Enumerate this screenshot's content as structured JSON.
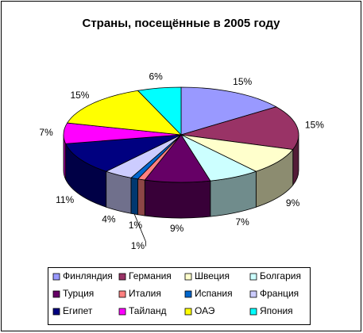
{
  "chart_data": {
    "type": "pie",
    "title": "Страны, посещённые в 2005 году",
    "categories": [
      "Финляндия",
      "Германия",
      "Швеция",
      "Болгария",
      "Турция",
      "Италия",
      "Испания",
      "Франция",
      "Египет",
      "Тайланд",
      "ОАЭ",
      "Япония"
    ],
    "values": [
      15,
      15,
      9,
      7,
      9,
      1,
      1,
      4,
      11,
      7,
      15,
      6
    ],
    "value_labels": [
      "15%",
      "15%",
      "9%",
      "7%",
      "9%",
      "1%",
      "1%",
      "4%",
      "11%",
      "7%",
      "15%",
      "6%"
    ],
    "colors": [
      "#9999ff",
      "#993366",
      "#ffffcc",
      "#ccffff",
      "#660066",
      "#ff8080",
      "#0066cc",
      "#ccccff",
      "#000080",
      "#ff00ff",
      "#ffff00",
      "#00ffff"
    ],
    "legend": "bottom"
  }
}
